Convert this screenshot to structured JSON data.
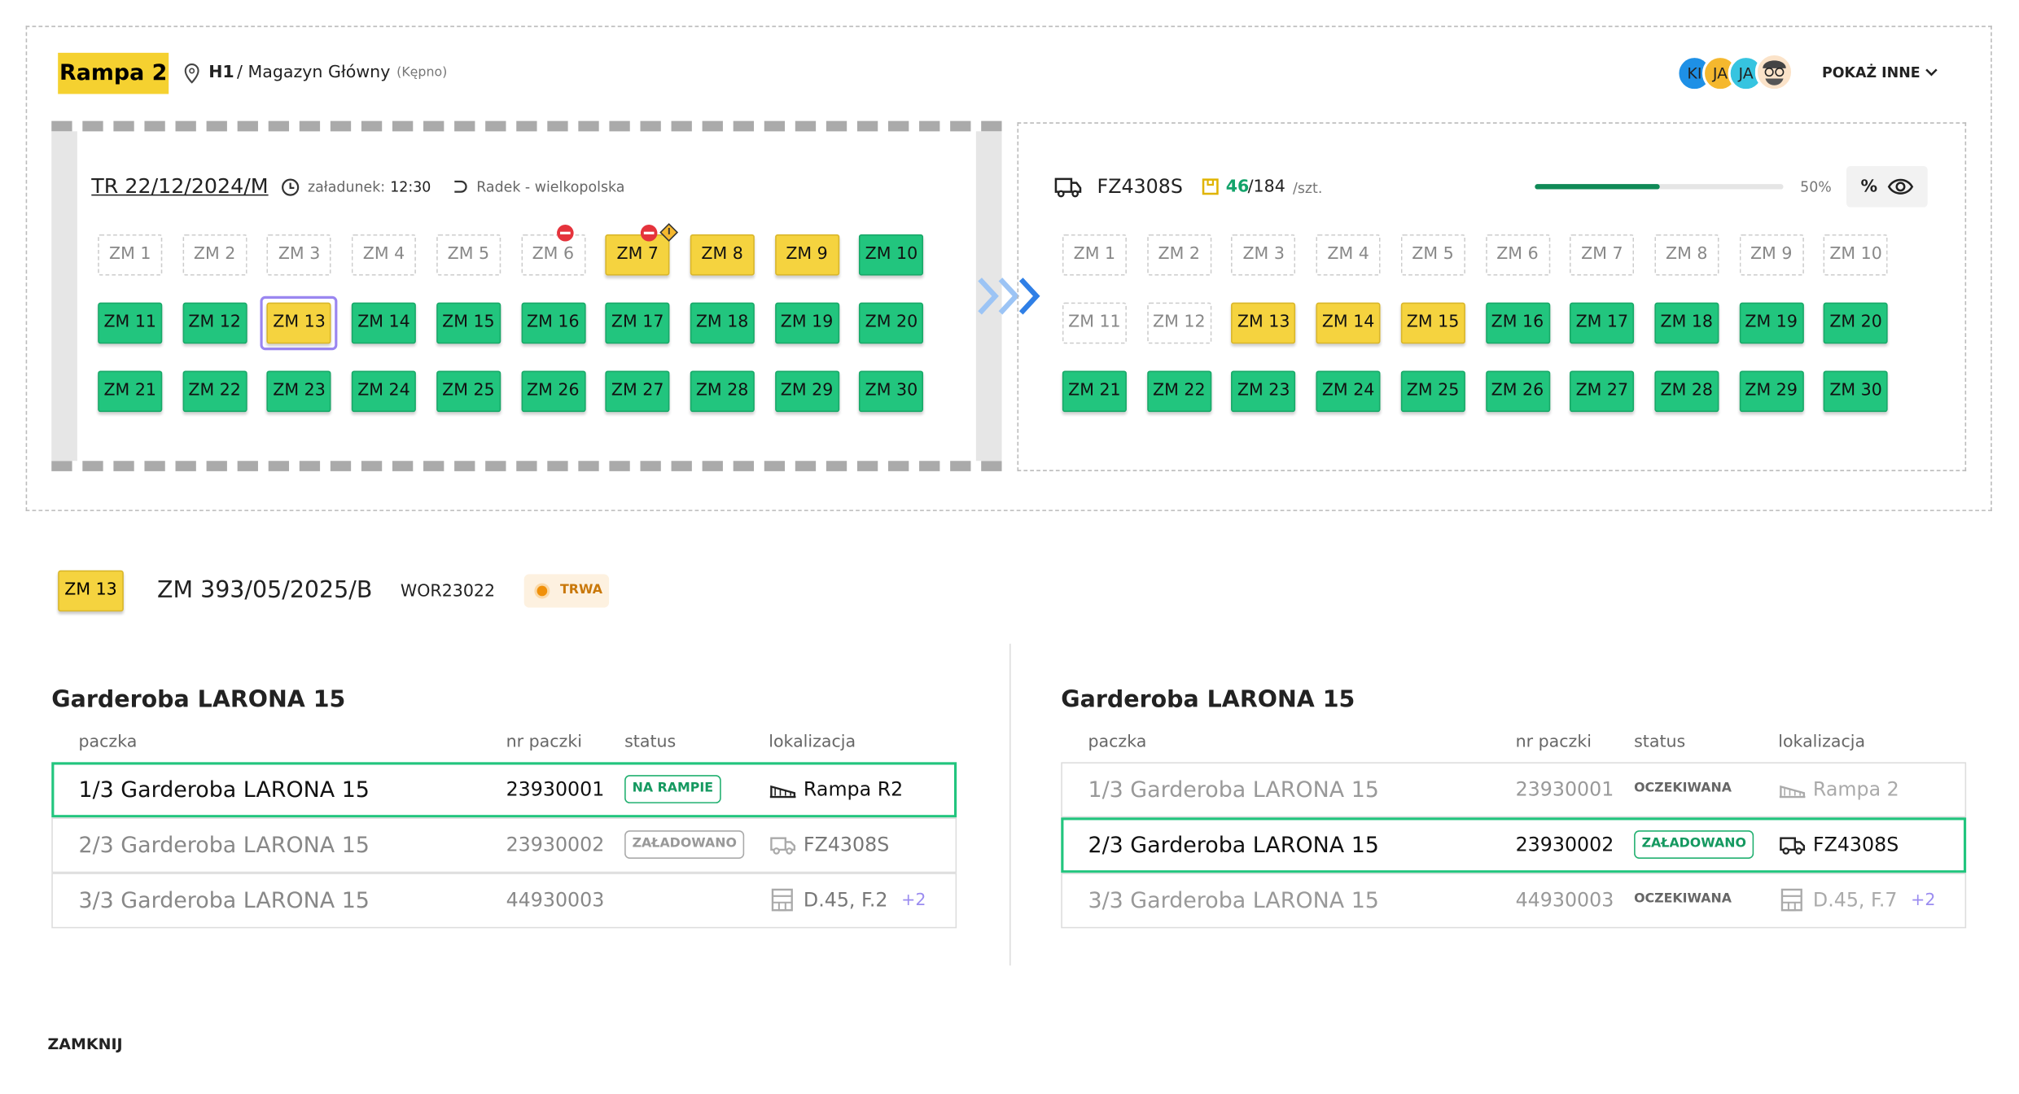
{
  "header": {
    "ramp": "Rampa 2",
    "hall": "H1",
    "warehouse": "/ Magazyn Główny",
    "city": "(Kępno)",
    "avatars": [
      "KI",
      "JA",
      "JA"
    ],
    "show_more": "POKAŻ INNE"
  },
  "trailer": {
    "id": "TR 22/12/2024/M",
    "loading_label": "załadunek:",
    "loading_time": "12:30",
    "route": "Radek - wielkopolska",
    "slots": [
      {
        "label": "ZM 1",
        "state": "empty"
      },
      {
        "label": "ZM 2",
        "state": "empty"
      },
      {
        "label": "ZM 3",
        "state": "empty"
      },
      {
        "label": "ZM 4",
        "state": "empty"
      },
      {
        "label": "ZM 5",
        "state": "empty"
      },
      {
        "label": "ZM 6",
        "state": "empty",
        "alerts": [
          "blocked"
        ]
      },
      {
        "label": "ZM 7",
        "state": "partial",
        "alerts": [
          "blocked",
          "warning"
        ]
      },
      {
        "label": "ZM 8",
        "state": "partial"
      },
      {
        "label": "ZM 9",
        "state": "partial"
      },
      {
        "label": "ZM 10",
        "state": "full"
      },
      {
        "label": "ZM 11",
        "state": "full"
      },
      {
        "label": "ZM 12",
        "state": "full"
      },
      {
        "label": "ZM 13",
        "state": "partial",
        "selected": true
      },
      {
        "label": "ZM 14",
        "state": "full"
      },
      {
        "label": "ZM 15",
        "state": "full"
      },
      {
        "label": "ZM 16",
        "state": "full"
      },
      {
        "label": "ZM 17",
        "state": "full"
      },
      {
        "label": "ZM 18",
        "state": "full"
      },
      {
        "label": "ZM 19",
        "state": "full"
      },
      {
        "label": "ZM 20",
        "state": "full"
      },
      {
        "label": "ZM 21",
        "state": "full"
      },
      {
        "label": "ZM 22",
        "state": "full"
      },
      {
        "label": "ZM 23",
        "state": "full"
      },
      {
        "label": "ZM 24",
        "state": "full"
      },
      {
        "label": "ZM 25",
        "state": "full"
      },
      {
        "label": "ZM 26",
        "state": "full"
      },
      {
        "label": "ZM 27",
        "state": "full"
      },
      {
        "label": "ZM 28",
        "state": "full"
      },
      {
        "label": "ZM 29",
        "state": "full"
      },
      {
        "label": "ZM 30",
        "state": "full"
      }
    ]
  },
  "truck": {
    "id": "FZ4308S",
    "loaded": 46,
    "total": "/184",
    "unit": "/szt.",
    "progress": {
      "value": 50,
      "label": "50%"
    },
    "toggle": "%",
    "slots": [
      {
        "label": "ZM 1",
        "state": "empty"
      },
      {
        "label": "ZM 2",
        "state": "empty"
      },
      {
        "label": "ZM 3",
        "state": "empty"
      },
      {
        "label": "ZM 4",
        "state": "empty"
      },
      {
        "label": "ZM 5",
        "state": "empty"
      },
      {
        "label": "ZM 6",
        "state": "empty"
      },
      {
        "label": "ZM 7",
        "state": "empty"
      },
      {
        "label": "ZM 8",
        "state": "empty"
      },
      {
        "label": "ZM 9",
        "state": "empty"
      },
      {
        "label": "ZM 10",
        "state": "empty"
      },
      {
        "label": "ZM 11",
        "state": "empty"
      },
      {
        "label": "ZM 12",
        "state": "empty"
      },
      {
        "label": "ZM 13",
        "state": "partial"
      },
      {
        "label": "ZM 14",
        "state": "partial"
      },
      {
        "label": "ZM 15",
        "state": "partial"
      },
      {
        "label": "ZM 16",
        "state": "full"
      },
      {
        "label": "ZM 17",
        "state": "full"
      },
      {
        "label": "ZM 18",
        "state": "full"
      },
      {
        "label": "ZM 19",
        "state": "full"
      },
      {
        "label": "ZM 20",
        "state": "full"
      },
      {
        "label": "ZM 21",
        "state": "full"
      },
      {
        "label": "ZM 22",
        "state": "full"
      },
      {
        "label": "ZM 23",
        "state": "full"
      },
      {
        "label": "ZM 24",
        "state": "full"
      },
      {
        "label": "ZM 25",
        "state": "full"
      },
      {
        "label": "ZM 26",
        "state": "full"
      },
      {
        "label": "ZM 27",
        "state": "full"
      },
      {
        "label": "ZM 28",
        "state": "full"
      },
      {
        "label": "ZM 29",
        "state": "full"
      },
      {
        "label": "ZM 30",
        "state": "full"
      }
    ]
  },
  "detail": {
    "slot": "ZM 13",
    "order": "ZM 393/05/2025/B",
    "code": "WOR23022",
    "status": "TRWA"
  },
  "tables": [
    {
      "title": "Garderoba LARONA 15",
      "columns": [
        "paczka",
        "nr paczki",
        "status",
        "lokalizacja"
      ],
      "rows": [
        {
          "name": "1/3 Garderoba LARONA 15",
          "number": "23930001",
          "status": "NA RAMPIE",
          "status_style": "green",
          "location": "Rampa R2",
          "location_icon": "ramp",
          "active": true
        },
        {
          "name": "2/3 Garderoba LARONA 15",
          "number": "23930002",
          "status": "ZAŁADOWANO",
          "status_style": "grey",
          "location": "FZ4308S",
          "location_icon": "truck"
        },
        {
          "name": "3/3 Garderoba LARONA 15",
          "number": "44930003",
          "status": null,
          "location": "D.45, F.2",
          "location_icon": "shelf",
          "extra": "+2"
        }
      ]
    },
    {
      "title": "Garderoba LARONA 15",
      "columns": [
        "paczka",
        "nr paczki",
        "status",
        "lokalizacja"
      ],
      "rows": [
        {
          "name": "1/3 Garderoba LARONA 15",
          "number": "23930001",
          "status": "OCZEKIWANA",
          "status_style": "plain",
          "location": "Rampa 2",
          "location_icon": "ramp",
          "faded": true
        },
        {
          "name": "2/3 Garderoba LARONA 15",
          "number": "23930002",
          "status": "ZAŁADOWANO",
          "status_style": "green",
          "location": "FZ4308S",
          "location_icon": "truck",
          "active": true
        },
        {
          "name": "3/3 Garderoba LARONA 15",
          "number": "44930003",
          "status": "OCZEKIWANA",
          "status_style": "plain",
          "location": "D.45, F.7",
          "location_icon": "shelf",
          "extra": "+2",
          "faded": true
        }
      ]
    }
  ],
  "close": "ZAMKNIJ"
}
